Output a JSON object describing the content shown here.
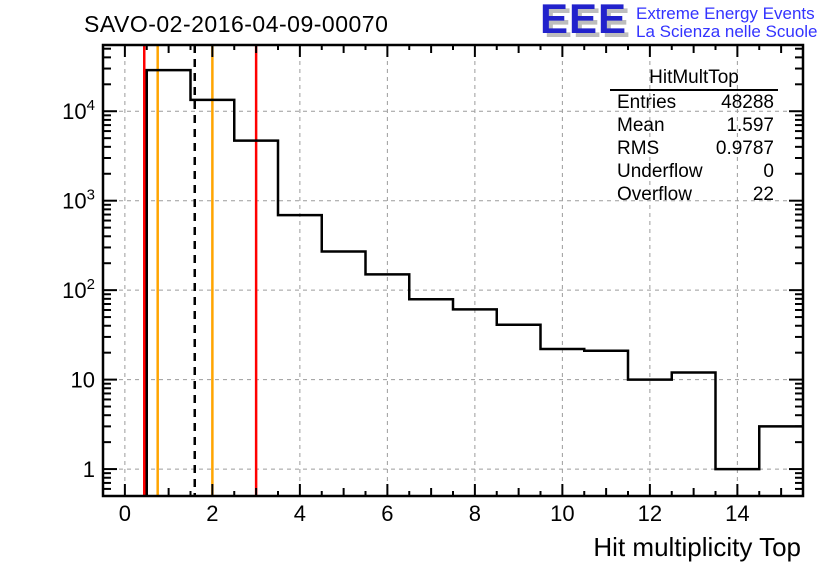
{
  "title": "SAVO-02-2016-04-09-00070",
  "logo": {
    "acronym": "EEE",
    "line1": "Extreme Energy Events",
    "line2": "La Scienza nelle Scuole",
    "acronym_color": "#2222cc",
    "text_color": "#3333ff",
    "shadow_color": "#bdbdbd"
  },
  "stats": {
    "title": "HitMultTop",
    "rows": [
      {
        "label": "Entries",
        "value": "48288"
      },
      {
        "label": "Mean",
        "value": "1.597"
      },
      {
        "label": "RMS",
        "value": "0.9787"
      },
      {
        "label": "Underflow",
        "value": "0"
      },
      {
        "label": "Overflow",
        "value": "22"
      }
    ]
  },
  "chart_data": {
    "type": "bar",
    "subtype": "step-histogram",
    "title": "SAVO-02-2016-04-09-00070",
    "xlabel": "Hit multiplicity Top",
    "ylabel": "",
    "y_scale": "log",
    "bin_width": 1,
    "bin_edges_start": 0.5,
    "bin_centers": [
      1,
      2,
      3,
      4,
      5,
      6,
      7,
      8,
      9,
      10,
      11,
      12,
      13,
      14,
      15
    ],
    "counts": [
      28800,
      13400,
      4700,
      690,
      270,
      150,
      79,
      61,
      41,
      22,
      21,
      10,
      12,
      1,
      3
    ],
    "xlim": [
      -0.5,
      15.5
    ],
    "ylim": [
      0.5,
      55000
    ],
    "x_major_ticks": [
      0,
      2,
      4,
      6,
      8,
      10,
      12,
      14
    ],
    "y_decade_ticks": [
      1,
      10,
      100,
      1000,
      10000
    ],
    "y_tick_exponents": [
      0,
      1,
      2,
      3,
      4
    ],
    "grid": "gray-dashed-on-major-ticks",
    "legend": "none",
    "marker_lines": [
      {
        "x": 0.5,
        "color": "#ff0000",
        "style": "solid",
        "name": "lower-alarm-line"
      },
      {
        "x": 0.75,
        "color": "#ffa500",
        "style": "solid",
        "name": "lower-warning-line"
      },
      {
        "x": 1.597,
        "color": "#000000",
        "style": "dashed",
        "name": "mean-marker-line"
      },
      {
        "x": 2,
        "color": "#ffa500",
        "style": "solid",
        "name": "upper-warning-line"
      },
      {
        "x": 3,
        "color": "#ff0000",
        "style": "solid",
        "name": "upper-alarm-line"
      }
    ],
    "colors": {
      "hist_line": "#000000",
      "grid": "#9c9c9c",
      "frame": "#000000",
      "background": "#ffffff"
    }
  }
}
